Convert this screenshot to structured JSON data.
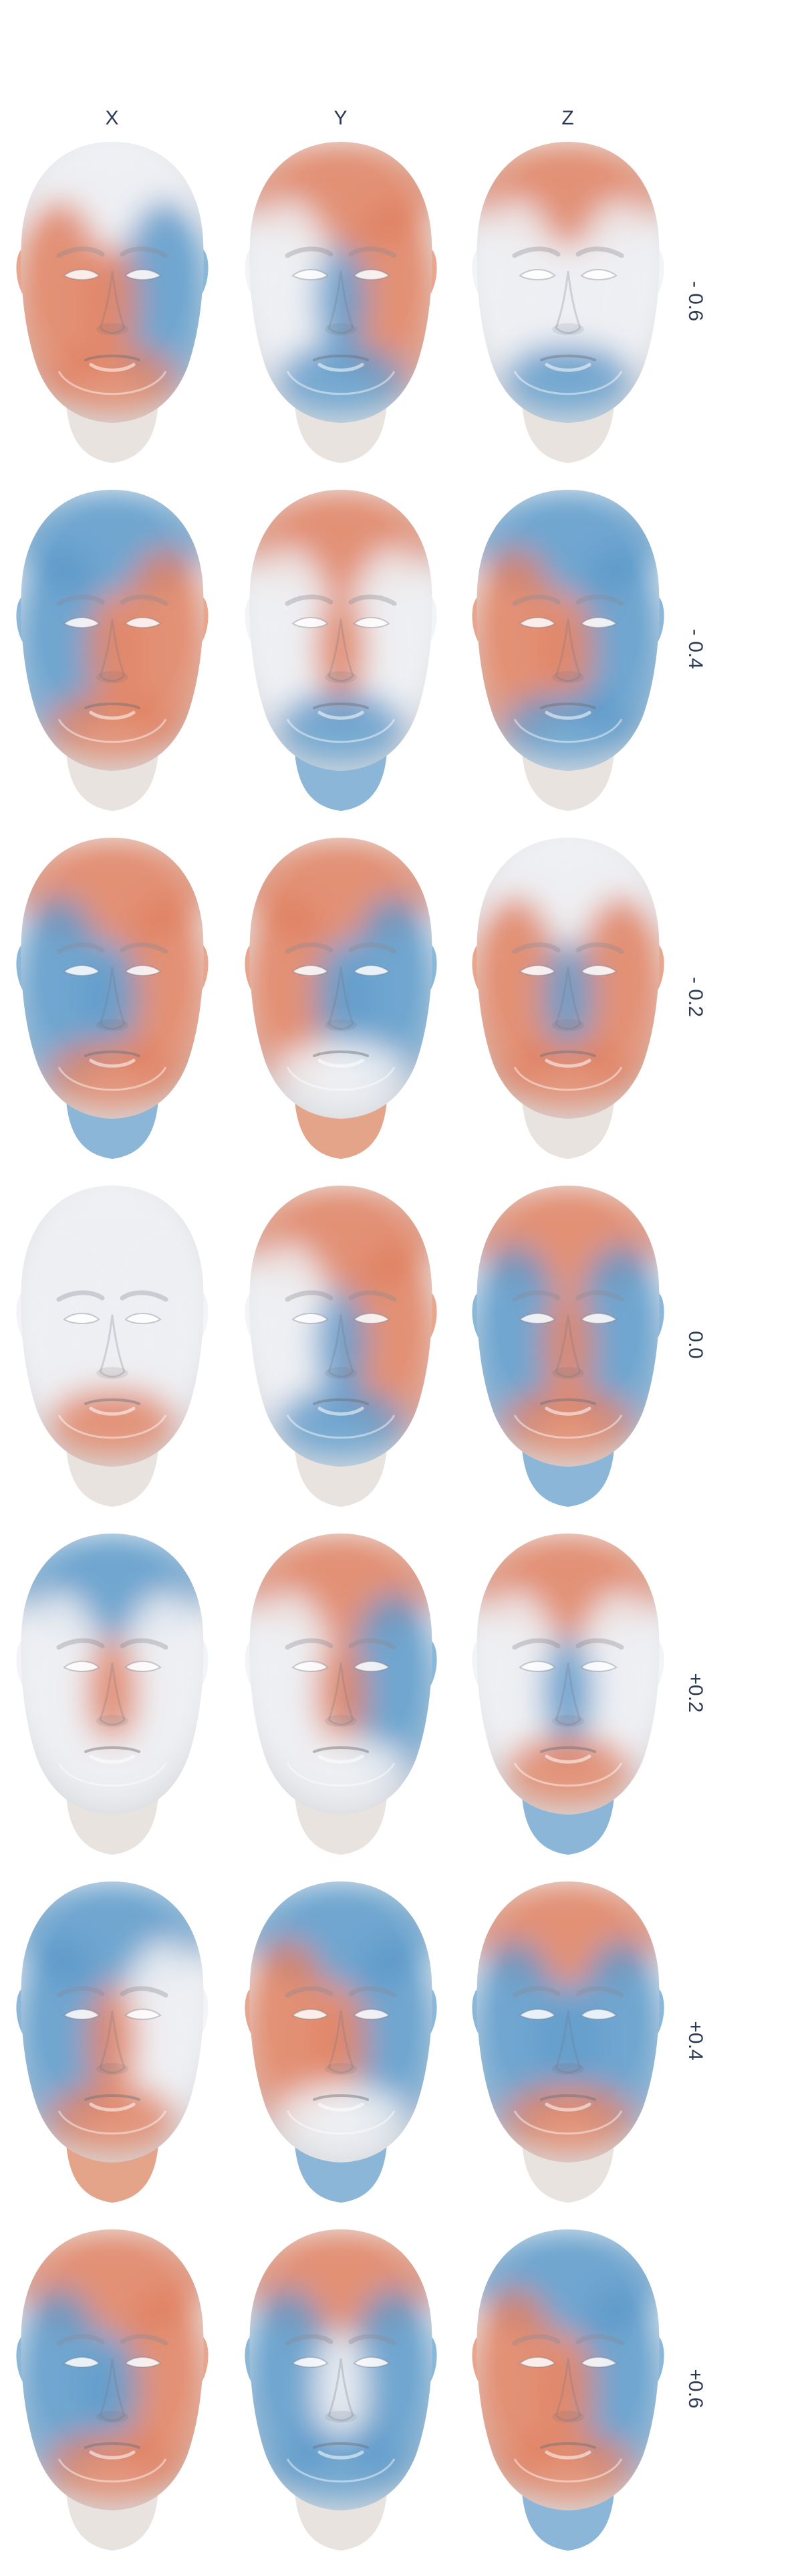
{
  "columns": [
    "X",
    "Y",
    "Z"
  ],
  "rows": [
    "- 0.6",
    "- 0.4",
    "- 0.2",
    "0.0",
    "+0.2",
    "+0.4",
    "+0.6"
  ],
  "colors": {
    "red": "#e0805f",
    "blue": "#5a99c9",
    "neutral": "#eef0f3",
    "skin_base": "#f1e6e2",
    "neck_red": "#e3a48a",
    "neck_blue": "#8cb6d7",
    "neck_neutral": "#e9e3e0",
    "text": "#2b3a55"
  },
  "heatmaps": [
    [
      {
        "upper": "neutral",
        "right": "blue",
        "left": "red",
        "nose": "red",
        "lower": "red",
        "neck": "neutral"
      },
      {
        "upper": "red",
        "right": "red",
        "left": "neutral",
        "nose": "blue",
        "lower": "blue",
        "neck": "neutral"
      },
      {
        "upper": "red",
        "right": "neutral",
        "left": "neutral",
        "nose": "neutral",
        "lower": "blue",
        "neck": "neutral"
      }
    ],
    [
      {
        "upper": "blue",
        "right": "red",
        "left": "blue",
        "nose": "red",
        "lower": "red",
        "neck": "neutral"
      },
      {
        "upper": "red",
        "right": "neutral",
        "left": "neutral",
        "nose": "red",
        "lower": "blue",
        "neck": "blue"
      },
      {
        "upper": "blue",
        "right": "blue",
        "left": "red",
        "nose": "red",
        "lower": "blue",
        "neck": "neutral"
      }
    ],
    [
      {
        "upper": "red",
        "right": "red",
        "left": "blue",
        "nose": "blue",
        "lower": "red",
        "neck": "blue"
      },
      {
        "upper": "red",
        "right": "blue",
        "left": "red",
        "nose": "blue",
        "lower": "neutral",
        "neck": "red"
      },
      {
        "upper": "neutral",
        "right": "red",
        "left": "red",
        "nose": "blue",
        "lower": "red",
        "neck": "neutral"
      }
    ],
    [
      {
        "upper": "neutral",
        "right": "neutral",
        "left": "neutral",
        "nose": "neutral",
        "lower": "red",
        "neck": "neutral"
      },
      {
        "upper": "red",
        "right": "red",
        "left": "neutral",
        "nose": "blue",
        "lower": "blue",
        "neck": "neutral"
      },
      {
        "upper": "red",
        "right": "blue",
        "left": "blue",
        "nose": "red",
        "lower": "red",
        "neck": "blue"
      }
    ],
    [
      {
        "upper": "blue",
        "right": "neutral",
        "left": "neutral",
        "nose": "red",
        "lower": "neutral",
        "neck": "neutral"
      },
      {
        "upper": "red",
        "right": "blue",
        "left": "neutral",
        "nose": "red",
        "lower": "neutral",
        "neck": "neutral"
      },
      {
        "upper": "red",
        "right": "neutral",
        "left": "neutral",
        "nose": "blue",
        "lower": "red",
        "neck": "blue"
      }
    ],
    [
      {
        "upper": "blue",
        "right": "neutral",
        "left": "blue",
        "nose": "red",
        "lower": "red",
        "neck": "red"
      },
      {
        "upper": "blue",
        "right": "blue",
        "left": "red",
        "nose": "red",
        "lower": "neutral",
        "neck": "blue"
      },
      {
        "upper": "red",
        "right": "blue",
        "left": "blue",
        "nose": "blue",
        "lower": "red",
        "neck": "neutral"
      }
    ],
    [
      {
        "upper": "red",
        "right": "red",
        "left": "blue",
        "nose": "blue",
        "lower": "red",
        "neck": "neutral"
      },
      {
        "upper": "red",
        "right": "blue",
        "left": "blue",
        "nose": "neutral",
        "lower": "blue",
        "neck": "neutral"
      },
      {
        "upper": "blue",
        "right": "blue",
        "left": "red",
        "nose": "red",
        "lower": "red",
        "neck": "blue"
      }
    ]
  ]
}
